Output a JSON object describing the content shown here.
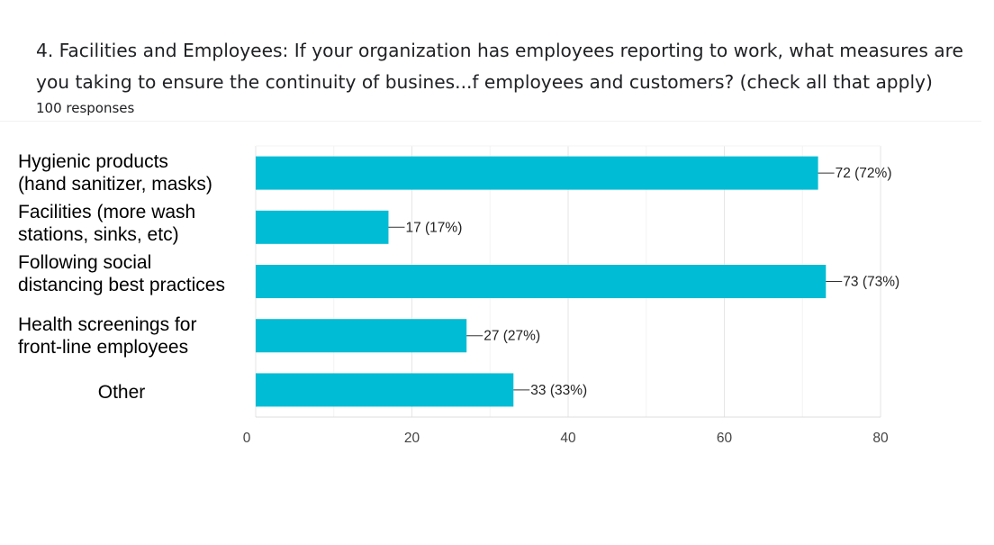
{
  "question": {
    "title": "4. Facilities and Employees: If your organization has employees reporting to work, what measures are you taking to ensure the continuity of busines...f employees and customers? (check all that apply)",
    "responses": "100 responses"
  },
  "chart_data": {
    "type": "bar",
    "orientation": "horizontal",
    "categories": [
      "Hygienic products\n(hand sanitizer, masks)",
      "Facilities (more wash\nstations, sinks, etc)",
      "Following social\ndistancing best practices",
      "Health screenings for\nfront-line employees",
      "Other"
    ],
    "values": [
      72,
      17,
      73,
      27,
      33
    ],
    "data_labels": [
      "72 (72%)",
      "17 (17%)",
      "73 (73%)",
      "27 (27%)",
      "33 (33%)"
    ],
    "xlim": [
      0,
      80
    ],
    "xticks": [
      0,
      20,
      40,
      60,
      80
    ],
    "xtick_labels": [
      "0",
      "20",
      "40",
      "60",
      "80"
    ],
    "bar_color": "#00bcd4",
    "grid": true
  }
}
